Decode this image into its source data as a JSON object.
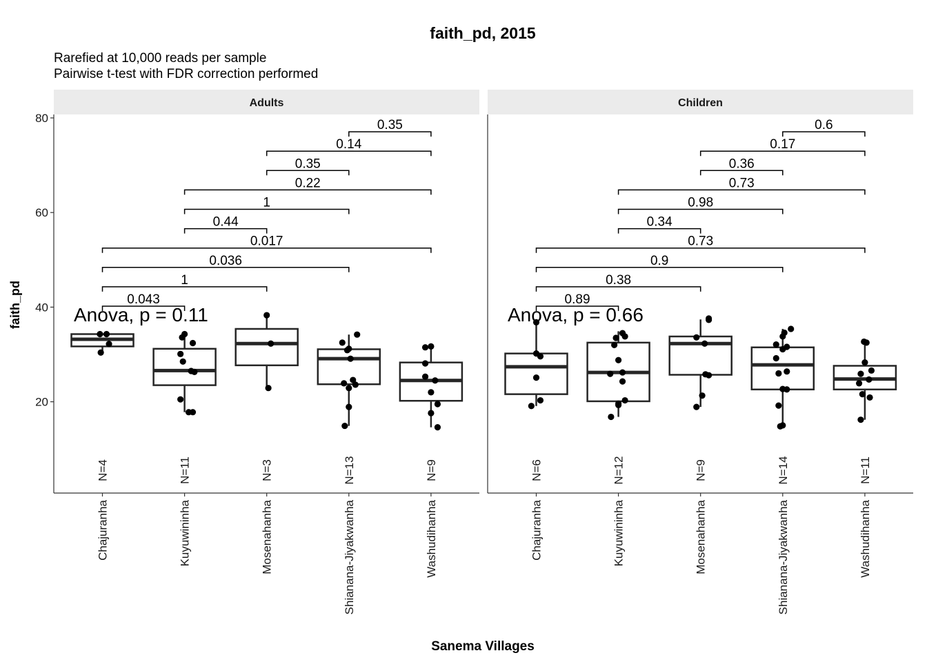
{
  "chart_data": {
    "type": "boxplot",
    "title": "faith_pd, 2015",
    "subtitle_lines": [
      "Rarefied at 10,000 reads per sample",
      "Pairwise t-test with FDR correction performed"
    ],
    "xlabel": "Sanema Villages",
    "ylabel": "faith_pd",
    "ylim": [
      0,
      80
    ],
    "y_ticks": [
      20,
      40,
      60,
      80
    ],
    "categories": [
      "Chajuranha",
      "Kuyuwininha",
      "Mosenahanha",
      "Shianana-Jiyakwanha",
      "Washudihanha"
    ],
    "grid": false,
    "panels": [
      {
        "name": "Adults",
        "anova_label": "Anova, p = 0.11",
        "groups": [
          {
            "category": "Chajuranha",
            "n_label": "N=4",
            "q1": 31.7,
            "median": 33.2,
            "q3": 34.3,
            "whisker_low": 30.3,
            "whisker_high": 34.4,
            "points": [
              [
                -0.03,
                34.3
              ],
              [
                0.05,
                34.3
              ],
              [
                0.08,
                32.2
              ],
              [
                -0.02,
                30.4
              ]
            ]
          },
          {
            "category": "Kuyuwininha",
            "n_label": "N=11",
            "q1": 23.5,
            "median": 26.6,
            "q3": 31.2,
            "whisker_low": 17.8,
            "whisker_high": 34.3,
            "points": [
              [
                0.0,
                34.3
              ],
              [
                -0.03,
                33.6
              ],
              [
                0.1,
                32.4
              ],
              [
                -0.05,
                30.1
              ],
              [
                -0.02,
                28.5
              ],
              [
                0.08,
                26.5
              ],
              [
                0.12,
                26.3
              ],
              [
                -0.05,
                20.5
              ],
              [
                0.05,
                17.8
              ],
              [
                0.1,
                17.8
              ]
            ]
          },
          {
            "category": "Mosenahanha",
            "n_label": "N=3",
            "q1": 27.7,
            "median": 32.3,
            "q3": 35.4,
            "whisker_low": 22.9,
            "whisker_high": 38.3,
            "points": [
              [
                0.0,
                38.3
              ],
              [
                0.05,
                32.3
              ],
              [
                0.02,
                22.9
              ]
            ]
          },
          {
            "category": "Shianana-Jiyakwanha",
            "n_label": "N=13",
            "q1": 23.7,
            "median": 29.1,
            "q3": 31.1,
            "whisker_low": 14.9,
            "whisker_high": 34.2,
            "points": [
              [
                0.1,
                34.2
              ],
              [
                -0.08,
                32.5
              ],
              [
                0.0,
                31.2
              ],
              [
                -0.02,
                30.9
              ],
              [
                0.02,
                29.1
              ],
              [
                0.05,
                24.6
              ],
              [
                -0.06,
                23.9
              ],
              [
                0.08,
                23.6
              ],
              [
                0.0,
                22.9
              ],
              [
                0.0,
                18.9
              ],
              [
                -0.05,
                14.9
              ]
            ]
          },
          {
            "category": "Washudihanha",
            "n_label": "N=9",
            "q1": 20.2,
            "median": 24.5,
            "q3": 28.3,
            "whisker_low": 14.6,
            "whisker_high": 31.7,
            "points": [
              [
                -0.07,
                31.5
              ],
              [
                0.0,
                31.7
              ],
              [
                -0.07,
                28.1
              ],
              [
                -0.07,
                25.3
              ],
              [
                0.05,
                24.5
              ],
              [
                0.0,
                22.0
              ],
              [
                0.08,
                19.5
              ],
              [
                0.0,
                17.6
              ],
              [
                0.08,
                14.6
              ]
            ]
          }
        ],
        "comparisons": [
          {
            "from": 0,
            "to": 1,
            "label": "0.043"
          },
          {
            "from": 0,
            "to": 2,
            "label": "1"
          },
          {
            "from": 0,
            "to": 3,
            "label": "0.036"
          },
          {
            "from": 0,
            "to": 4,
            "label": "0.017"
          },
          {
            "from": 1,
            "to": 2,
            "label": "0.44"
          },
          {
            "from": 1,
            "to": 3,
            "label": "1"
          },
          {
            "from": 1,
            "to": 4,
            "label": "0.22"
          },
          {
            "from": 2,
            "to": 3,
            "label": "0.35"
          },
          {
            "from": 2,
            "to": 4,
            "label": "0.14"
          },
          {
            "from": 3,
            "to": 4,
            "label": "0.35"
          }
        ]
      },
      {
        "name": "Children",
        "anova_label": "Anova, p = 0.66",
        "groups": [
          {
            "category": "Chajuranha",
            "n_label": "N=6",
            "q1": 21.6,
            "median": 27.4,
            "q3": 30.2,
            "whisker_low": 19.1,
            "whisker_high": 36.8,
            "points": [
              [
                0.0,
                36.8
              ],
              [
                0.0,
                30.2
              ],
              [
                0.05,
                29.6
              ],
              [
                0.0,
                25.1
              ],
              [
                0.05,
                20.3
              ],
              [
                -0.06,
                19.1
              ]
            ]
          },
          {
            "category": "Kuyuwininha",
            "n_label": "N=12",
            "q1": 20.1,
            "median": 26.2,
            "q3": 32.5,
            "whisker_low": 16.8,
            "whisker_high": 34.9,
            "points": [
              [
                0.05,
                34.5
              ],
              [
                0.08,
                33.8
              ],
              [
                -0.03,
                33.5
              ],
              [
                -0.05,
                32.0
              ],
              [
                0.0,
                28.8
              ],
              [
                0.05,
                26.2
              ],
              [
                -0.1,
                25.9
              ],
              [
                0.05,
                24.3
              ],
              [
                0.08,
                20.3
              ],
              [
                0.0,
                19.6
              ],
              [
                0.0,
                19.3
              ],
              [
                -0.09,
                16.8
              ]
            ]
          },
          {
            "category": "Mosenahanha",
            "n_label": "N=9",
            "q1": 25.7,
            "median": 32.3,
            "q3": 33.8,
            "whisker_low": 18.9,
            "whisker_high": 37.4,
            "points": [
              [
                0.1,
                37.6
              ],
              [
                0.1,
                37.3
              ],
              [
                -0.05,
                33.6
              ],
              [
                0.05,
                32.3
              ],
              [
                0.06,
                25.8
              ],
              [
                0.1,
                25.6
              ],
              [
                0.02,
                21.3
              ],
              [
                -0.05,
                18.9
              ]
            ]
          },
          {
            "category": "Shianana-Jiyakwanha",
            "n_label": "N=14",
            "q1": 22.6,
            "median": 27.8,
            "q3": 31.5,
            "whisker_low": 14.8,
            "whisker_high": 35.4,
            "points": [
              [
                0.1,
                35.4
              ],
              [
                0.02,
                34.6
              ],
              [
                0.0,
                33.8
              ],
              [
                -0.08,
                32.1
              ],
              [
                0.05,
                31.6
              ],
              [
                0.0,
                31.1
              ],
              [
                -0.08,
                29.2
              ],
              [
                0.05,
                26.4
              ],
              [
                -0.05,
                26.0
              ],
              [
                0.0,
                22.7
              ],
              [
                0.05,
                22.6
              ],
              [
                -0.05,
                19.2
              ],
              [
                0.0,
                15.0
              ],
              [
                -0.03,
                14.8
              ]
            ]
          },
          {
            "category": "Washudihanha",
            "n_label": "N=11",
            "q1": 22.6,
            "median": 24.8,
            "q3": 27.6,
            "whisker_low": 16.2,
            "whisker_high": 32.6,
            "points": [
              [
                -0.01,
                32.7
              ],
              [
                0.02,
                32.5
              ],
              [
                0.0,
                28.3
              ],
              [
                0.08,
                26.6
              ],
              [
                -0.05,
                25.9
              ],
              [
                0.05,
                24.7
              ],
              [
                -0.07,
                23.9
              ],
              [
                -0.03,
                21.6
              ],
              [
                0.06,
                20.9
              ],
              [
                -0.05,
                16.2
              ]
            ]
          }
        ],
        "comparisons": [
          {
            "from": 0,
            "to": 1,
            "label": "0.89"
          },
          {
            "from": 0,
            "to": 2,
            "label": "0.38"
          },
          {
            "from": 0,
            "to": 3,
            "label": "0.9"
          },
          {
            "from": 0,
            "to": 4,
            "label": "0.73"
          },
          {
            "from": 1,
            "to": 2,
            "label": "0.34"
          },
          {
            "from": 1,
            "to": 3,
            "label": "0.98"
          },
          {
            "from": 1,
            "to": 4,
            "label": "0.73"
          },
          {
            "from": 2,
            "to": 3,
            "label": "0.36"
          },
          {
            "from": 2,
            "to": 4,
            "label": "0.17"
          },
          {
            "from": 3,
            "to": 4,
            "label": "0.6"
          }
        ]
      }
    ]
  }
}
